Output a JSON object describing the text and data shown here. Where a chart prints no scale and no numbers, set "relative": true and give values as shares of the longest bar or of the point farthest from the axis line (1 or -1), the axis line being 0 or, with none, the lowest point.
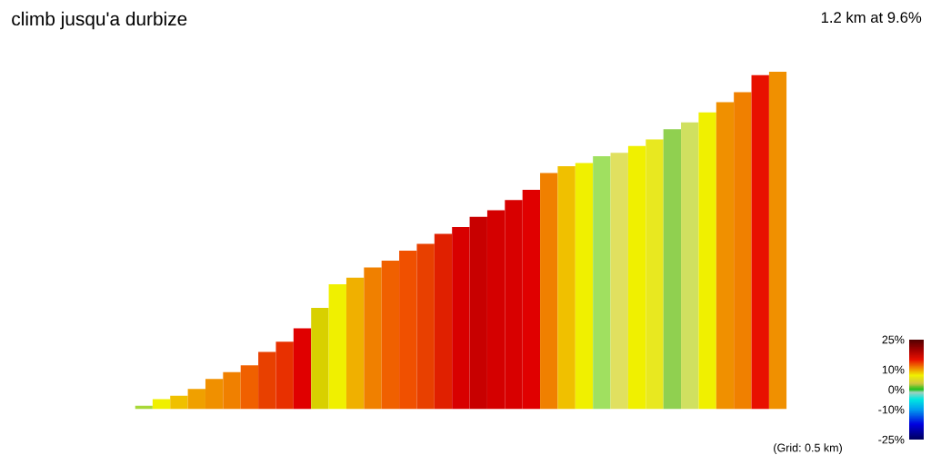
{
  "chart_data": {
    "type": "bar",
    "title": "climb jusqu'a durbize",
    "subtitle": "1.2 km at 9.6%",
    "relative": true,
    "categories": [
      null,
      null,
      null,
      null,
      null,
      null,
      null,
      null,
      null,
      null,
      null,
      null,
      null,
      null,
      null,
      null,
      null,
      null,
      null,
      null,
      null,
      null,
      null,
      null,
      null,
      null,
      null,
      null,
      null,
      null,
      null,
      null,
      null,
      null,
      null,
      null,
      null
    ],
    "values": [
      0.01,
      0.03,
      0.04,
      0.06,
      0.09,
      0.11,
      0.13,
      0.17,
      0.2,
      0.24,
      0.3,
      0.37,
      0.39,
      0.42,
      0.44,
      0.47,
      0.49,
      0.52,
      0.54,
      0.57,
      0.59,
      0.62,
      0.65,
      0.7,
      0.72,
      0.73,
      0.75,
      0.76,
      0.78,
      0.8,
      0.83,
      0.85,
      0.88,
      0.91,
      0.94,
      0.99,
      1
    ],
    "colors": [
      "#a8d838",
      "#f0f000",
      "#f0c000",
      "#f0a000",
      "#f09000",
      "#f08000",
      "#f06000",
      "#e84000",
      "#e83000",
      "#e00000",
      "#d8d000",
      "#f0f000",
      "#f0b000",
      "#f08000",
      "#f06000",
      "#f05000",
      "#e84000",
      "#e02000",
      "#d80000",
      "#c80000",
      "#d40000",
      "#d80000",
      "#e00000",
      "#f08000",
      "#f0c000",
      "#f0f000",
      "#a0e060",
      "#e0e060",
      "#f0f000",
      "#e8e820",
      "#90d050",
      "#d0e060",
      "#f0f000",
      "#f09000",
      "#f08000",
      "#e81000",
      "#f09000"
    ],
    "clim": [
      -25,
      25
    ],
    "cticks": [
      {
        "value": 25,
        "label": "25%"
      },
      {
        "value": 10,
        "label": "10%"
      },
      {
        "value": 0,
        "label": "0%"
      },
      {
        "value": -10,
        "label": "-10%"
      },
      {
        "value": -25,
        "label": "-25%"
      }
    ],
    "annotations": [
      "(Grid: 0.5 km)"
    ]
  }
}
